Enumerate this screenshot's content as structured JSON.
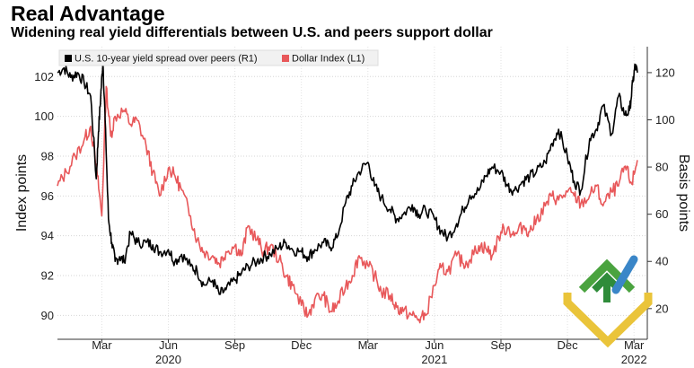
{
  "chart_data": {
    "type": "line",
    "title": "Real Advantage",
    "subtitle": "Widening real yield differentials between U.S. and peers support dollar",
    "ylabel_left": "Index points",
    "ylabel_right": "Basis points",
    "left_ticks": [
      90,
      92,
      94,
      96,
      98,
      100,
      102
    ],
    "left_ylim": [
      88.8,
      103.5
    ],
    "right_ticks": [
      20,
      40,
      60,
      80,
      100,
      120
    ],
    "right_ylim": [
      7,
      131
    ],
    "x_ticks": [
      "Mar",
      "Jun",
      "Sep",
      "Dec",
      "Mar",
      "Jun",
      "Sep",
      "Dec",
      "Mar"
    ],
    "x_tick_pos": [
      2,
      5,
      8,
      11,
      14,
      17,
      20,
      23,
      26
    ],
    "years": [
      {
        "label": "2020",
        "pos": 5
      },
      {
        "label": "2021",
        "pos": 17
      },
      {
        "label": "2022",
        "pos": 26
      }
    ],
    "xlim": [
      0,
      26.6
    ],
    "grid": true,
    "legend_position": "top-left",
    "series": [
      {
        "name": "U.S. 10-year yield spread over peers (R1)",
        "axis": "right",
        "color": "#000000",
        "x": [
          0,
          0.3,
          0.6,
          0.9,
          1.2,
          1.5,
          1.75,
          1.85,
          1.95,
          2.05,
          2.15,
          2.3,
          2.45,
          2.6,
          2.8,
          3.0,
          3.3,
          3.6,
          4.0,
          4.3,
          4.6,
          5.0,
          5.3,
          5.6,
          6.0,
          6.3,
          6.6,
          7.0,
          7.3,
          7.6,
          8.0,
          8.3,
          8.6,
          9.0,
          9.3,
          9.6,
          10.0,
          10.3,
          10.6,
          11.0,
          11.3,
          11.6,
          12.0,
          12.3,
          12.6,
          13.0,
          13.3,
          13.6,
          14.0,
          14.3,
          14.6,
          15.0,
          15.3,
          15.6,
          16.0,
          16.3,
          16.6,
          17.0,
          17.3,
          17.6,
          18.0,
          18.3,
          18.6,
          19.0,
          19.3,
          19.6,
          20.0,
          20.3,
          20.6,
          21.0,
          21.3,
          21.6,
          22.0,
          22.3,
          22.6,
          23.0,
          23.3,
          23.6,
          24.0,
          24.3,
          24.6,
          25.0,
          25.3,
          25.6,
          25.8,
          25.95,
          26.05,
          26.15
        ],
        "values": [
          120,
          122,
          118,
          120,
          116,
          110,
          75,
          95,
          110,
          125,
          100,
          58,
          48,
          40,
          42,
          40,
          52,
          48,
          48,
          47,
          44,
          45,
          40,
          43,
          38,
          36,
          30,
          32,
          26,
          28,
          32,
          35,
          38,
          40,
          42,
          43,
          46,
          48,
          45,
          44,
          42,
          45,
          48,
          46,
          50,
          65,
          72,
          78,
          82,
          72,
          67,
          62,
          58,
          60,
          64,
          60,
          62,
          58,
          53,
          50,
          56,
          62,
          68,
          70,
          76,
          80,
          78,
          72,
          70,
          74,
          76,
          78,
          82,
          90,
          96,
          84,
          74,
          70,
          92,
          96,
          106,
          94,
          110,
          102,
          104,
          116,
          123,
          120
        ]
      },
      {
        "name": "Dollar Index (L1)",
        "axis": "left",
        "color": "#e8585a",
        "x": [
          0,
          0.4,
          0.8,
          1.2,
          1.5,
          1.8,
          2.0,
          2.2,
          2.4,
          2.6,
          3.0,
          3.3,
          3.6,
          4.0,
          4.3,
          4.6,
          5.0,
          5.3,
          5.6,
          6.0,
          6.3,
          6.6,
          7.0,
          7.3,
          7.6,
          8.0,
          8.3,
          8.6,
          9.0,
          9.3,
          9.6,
          10.0,
          10.3,
          10.6,
          11.0,
          11.3,
          11.6,
          12.0,
          12.3,
          12.6,
          13.0,
          13.3,
          13.6,
          14.0,
          14.3,
          14.6,
          15.0,
          15.3,
          15.6,
          16.0,
          16.3,
          16.6,
          17.0,
          17.3,
          17.6,
          18.0,
          18.3,
          18.6,
          19.0,
          19.3,
          19.6,
          20.0,
          20.3,
          20.6,
          21.0,
          21.3,
          21.6,
          22.0,
          22.3,
          22.6,
          23.0,
          23.3,
          23.6,
          24.0,
          24.3,
          24.6,
          25.0,
          25.3,
          25.6,
          25.9,
          26.15
        ],
        "values": [
          96.5,
          97.2,
          98.0,
          98.8,
          99.5,
          97.0,
          95.0,
          101.5,
          99.0,
          100.0,
          100.3,
          99.6,
          99.8,
          98.5,
          97.2,
          96.0,
          97.4,
          97.0,
          96.3,
          95.0,
          93.8,
          93.2,
          93.0,
          92.6,
          93.2,
          93.5,
          93.0,
          94.5,
          93.8,
          93.2,
          93.5,
          92.8,
          92.0,
          91.5,
          90.5,
          90.0,
          90.8,
          91.0,
          90.2,
          90.5,
          91.5,
          92.0,
          93.0,
          92.5,
          92.0,
          91.2,
          91.0,
          90.4,
          90.2,
          90.0,
          89.8,
          90.0,
          91.5,
          92.4,
          92.2,
          93.0,
          92.6,
          92.8,
          93.5,
          93.4,
          93.0,
          94.2,
          94.4,
          94.0,
          94.5,
          94.2,
          94.8,
          95.5,
          96.0,
          95.8,
          96.2,
          96.0,
          95.6,
          96.0,
          96.5,
          95.5,
          96.2,
          96.5,
          97.5,
          96.6,
          97.8
        ]
      }
    ]
  }
}
